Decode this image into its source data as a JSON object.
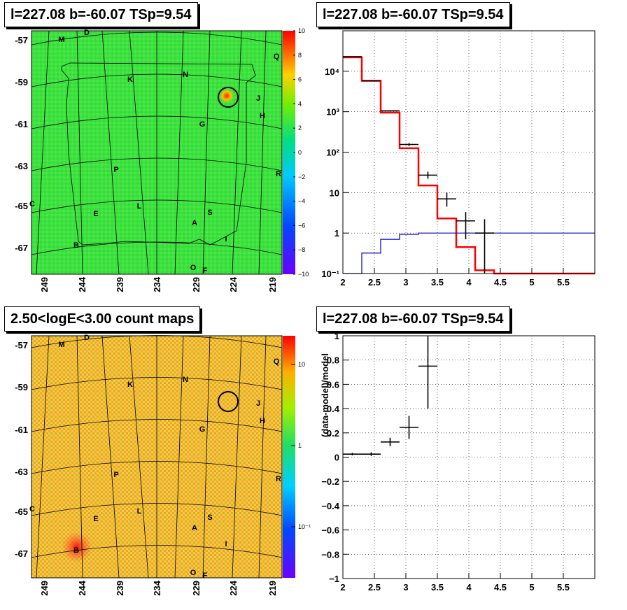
{
  "panels": {
    "tl_title": "l=227.08 b=-60.07 TSp=9.54",
    "tr_title": "l=227.08 b=-60.07 TSp=9.54",
    "bl_title": "2.50<logE<3.00 count maps",
    "br_title": "l=227.08 b=-60.07 TSp=9.54"
  },
  "sky_map": {
    "lat_ticks": [
      "-57",
      "-59",
      "-61",
      "-63",
      "-65",
      "-67"
    ],
    "lon_ticks": [
      "249",
      "244",
      "239",
      "234",
      "229",
      "224",
      "219"
    ],
    "source_labels": [
      "D",
      "M",
      "Q",
      "K",
      "N",
      "J",
      "H",
      "G",
      "R",
      "P",
      "L",
      "C",
      "E",
      "S",
      "A",
      "B",
      "I",
      "O",
      "F"
    ],
    "residual_colorbar_ticks": [
      "10",
      "8",
      "6",
      "4",
      "2",
      "0",
      "−2",
      "−4",
      "−6",
      "−8",
      "−10"
    ],
    "count_colorbar_ticks": [
      "10",
      "1",
      "10⁻¹"
    ]
  },
  "chart_data": [
    {
      "type": "step",
      "title": "l=227.08 b=-60.07 TSp=9.54",
      "xlabel": "",
      "ylabel": "",
      "xlim": [
        2,
        6
      ],
      "ylim": [
        0.1,
        100000
      ],
      "yscale": "log",
      "x_ticks": [
        "2",
        "2.5",
        "3",
        "3.5",
        "4",
        "4.5",
        "5",
        "5.5"
      ],
      "y_ticks": [
        "10⁻¹",
        "1",
        "10",
        "10²",
        "10³",
        "10⁴"
      ],
      "grid": true,
      "bin_edges": [
        2.0,
        2.3,
        2.6,
        2.9,
        3.2,
        3.5,
        3.8,
        4.1,
        4.4,
        6.0
      ],
      "series": [
        {
          "color": "#ff0000",
          "values": [
            22000,
            5800,
            950,
            125,
            15,
            2.3,
            0.45,
            0.12,
            0.1
          ]
        },
        {
          "color": "#0000cc",
          "values": [
            0.05,
            0.32,
            0.7,
            0.93,
            1.0,
            1.0,
            1.0,
            1.0,
            1.0
          ]
        }
      ],
      "points": [
        {
          "x": 2.15,
          "y": 23000,
          "xerr": 0.15,
          "ylo": 22800,
          "yhi": 23200
        },
        {
          "x": 2.45,
          "y": 5800,
          "xerr": 0.15,
          "ylo": 5700,
          "yhi": 5900
        },
        {
          "x": 2.75,
          "y": 1050,
          "xerr": 0.15,
          "ylo": 1020,
          "yhi": 1080
        },
        {
          "x": 3.05,
          "y": 155,
          "xerr": 0.15,
          "ylo": 142,
          "yhi": 168
        },
        {
          "x": 3.35,
          "y": 27,
          "xerr": 0.15,
          "ylo": 22,
          "yhi": 33
        },
        {
          "x": 3.65,
          "y": 7,
          "xerr": 0.15,
          "ylo": 4.5,
          "yhi": 10
        },
        {
          "x": 3.95,
          "y": 2,
          "xerr": 0.15,
          "ylo": 0.7,
          "yhi": 3.3
        },
        {
          "x": 4.25,
          "y": 1,
          "xerr": 0.15,
          "ylo": 0.1,
          "yhi": 2.2
        }
      ]
    },
    {
      "type": "scatter",
      "title": "l=227.08 b=-60.07 TSp=9.54",
      "xlabel": "",
      "ylabel": "(data-model)/model",
      "xlim": [
        2,
        6
      ],
      "ylim": [
        -1,
        1
      ],
      "x_ticks": [
        "2",
        "2.5",
        "3",
        "3.5",
        "4",
        "4.5",
        "5",
        "5.5"
      ],
      "y_ticks": [
        "−1",
        "−0.8",
        "−0.6",
        "−0.4",
        "−0.2",
        "0",
        "0.2",
        "0.4",
        "0.6",
        "0.8",
        "1"
      ],
      "grid": true,
      "points": [
        {
          "x": 2.15,
          "y": 0.025,
          "xerr": 0.15,
          "ylo": 0.015,
          "yhi": 0.035
        },
        {
          "x": 2.45,
          "y": 0.025,
          "xerr": 0.15,
          "ylo": 0.01,
          "yhi": 0.04
        },
        {
          "x": 2.75,
          "y": 0.125,
          "xerr": 0.15,
          "ylo": 0.09,
          "yhi": 0.16
        },
        {
          "x": 3.05,
          "y": 0.245,
          "xerr": 0.15,
          "ylo": 0.15,
          "yhi": 0.34
        },
        {
          "x": 3.35,
          "y": 0.75,
          "xerr": 0.15,
          "ylo": 0.4,
          "yhi": 1.0
        }
      ]
    }
  ]
}
